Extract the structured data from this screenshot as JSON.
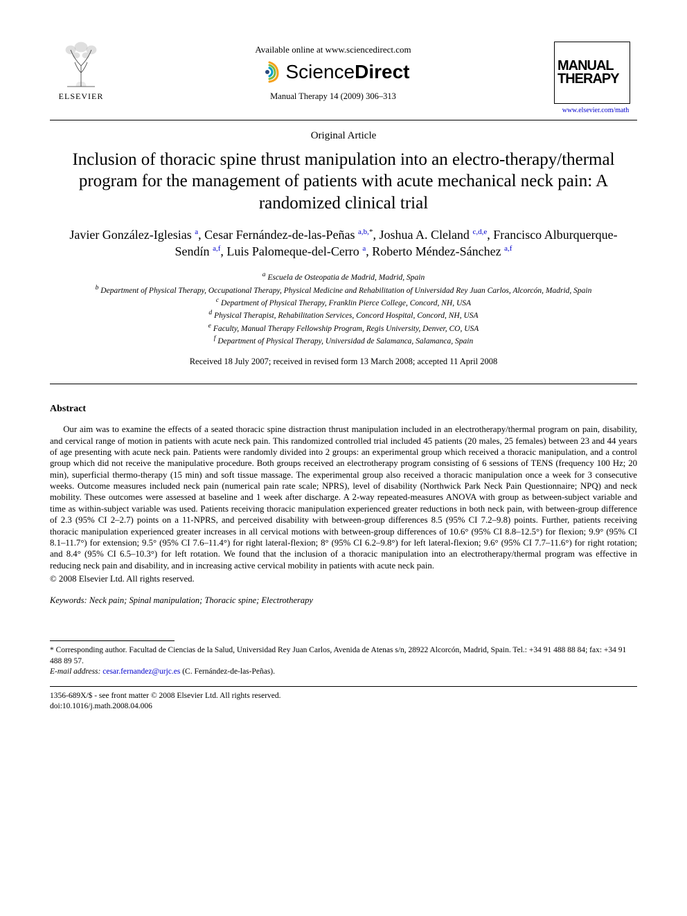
{
  "header": {
    "elsevier_label": "ELSEVIER",
    "available_text": "Available online at www.sciencedirect.com",
    "sciencedirect_prefix": "Science",
    "sciencedirect_suffix": "Direct",
    "citation": "Manual Therapy 14 (2009) 306–313",
    "journal_logo_line1": "Manual",
    "journal_logo_line2": "Therapy",
    "journal_url": "www.elsevier.com/math"
  },
  "article": {
    "type": "Original Article",
    "title": "Inclusion of thoracic spine thrust manipulation into an electro-therapy/thermal program for the management of patients with acute mechanical neck pain: A randomized clinical trial"
  },
  "authors_html": "Javier González-Iglesias <sup class='sup-link'>a</sup>, Cesar Fernández-de-las-Peñas <sup class='sup-link'>a,b,</sup><sup>*</sup>, Joshua A. Cleland <sup class='sup-link'>c,d,e</sup>, Francisco Alburquerque-Sendín <sup class='sup-link'>a,f</sup>, Luis Palomeque-del-Cerro <sup class='sup-link'>a</sup>, Roberto Méndez-Sánchez <sup class='sup-link'>a,f</sup>",
  "affiliations": {
    "a": "Escuela de Osteopatia de Madrid, Madrid, Spain",
    "b": "Department of Physical Therapy, Occupational Therapy, Physical Medicine and Rehabilitation of Universidad Rey Juan Carlos, Alcorcón, Madrid, Spain",
    "c": "Department of Physical Therapy, Franklin Pierce College, Concord, NH, USA",
    "d": "Physical Therapist, Rehabilitation Services, Concord Hospital, Concord, NH, USA",
    "e": "Faculty, Manual Therapy Fellowship Program, Regis University, Denver, CO, USA",
    "f": "Department of Physical Therapy, Universidad de Salamanca, Salamanca, Spain"
  },
  "dates": "Received 18 July 2007; received in revised form 13 March 2008; accepted 11 April 2008",
  "abstract": {
    "heading": "Abstract",
    "body": "Our aim was to examine the effects of a seated thoracic spine distraction thrust manipulation included in an electrotherapy/thermal program on pain, disability, and cervical range of motion in patients with acute neck pain. This randomized controlled trial included 45 patients (20 males, 25 females) between 23 and 44 years of age presenting with acute neck pain. Patients were randomly divided into 2 groups: an experimental group which received a thoracic manipulation, and a control group which did not receive the manipulative procedure. Both groups received an electrotherapy program consisting of 6 sessions of TENS (frequency 100 Hz; 20 min), superficial thermo-therapy (15 min) and soft tissue massage. The experimental group also received a thoracic manipulation once a week for 3 consecutive weeks. Outcome measures included neck pain (numerical pain rate scale; NPRS), level of disability (Northwick Park Neck Pain Questionnaire; NPQ) and neck mobility. These outcomes were assessed at baseline and 1 week after discharge. A 2-way repeated-measures ANOVA with group as between-subject variable and time as within-subject variable was used. Patients receiving thoracic manipulation experienced greater reductions in both neck pain, with between-group difference of 2.3 (95% CI 2–2.7) points on a 11-NPRS, and perceived disability with between-group differences 8.5 (95% CI 7.2–9.8) points. Further, patients receiving thoracic manipulation experienced greater increases in all cervical motions with between-group differences of 10.6° (95% CI 8.8–12.5°) for flexion; 9.9° (95% CI 8.1–11.7°) for extension; 9.5° (95% CI 7.6–11.4°) for right lateral-flexion; 8° (95% CI 6.2–9.8°) for left lateral-flexion; 9.6° (95% CI 7.7–11.6°) for right rotation; and 8.4° (95% CI 6.5–10.3°) for left rotation. We found that the inclusion of a thoracic manipulation into an electrotherapy/thermal program was effective in reducing neck pain and disability, and in increasing active cervical mobility in patients with acute neck pain.",
    "copyright": "© 2008 Elsevier Ltd. All rights reserved."
  },
  "keywords": {
    "label": "Keywords:",
    "text": "Neck pain; Spinal manipulation; Thoracic spine; Electrotherapy"
  },
  "footnote": {
    "corresponding": "* Corresponding author. Facultad de Ciencias de la Salud, Universidad Rey Juan Carlos, Avenida de Atenas s/n, 28922 Alcorcón, Madrid, Spain. Tel.: +34 91 488 88 84; fax: +34 91 488 89 57.",
    "email_label": "E-mail address:",
    "email": "cesar.fernandez@urjc.es",
    "email_person": "(C. Fernández-de-las-Peñas)."
  },
  "footer": {
    "line1": "1356-689X/$ - see front matter © 2008 Elsevier Ltd. All rights reserved.",
    "line2": "doi:10.1016/j.math.2008.04.006"
  },
  "colors": {
    "text": "#000000",
    "link": "#0000cc",
    "background": "#ffffff",
    "swirl1": "#f5a11a",
    "swirl2": "#7fba42",
    "swirl3": "#00a0c6"
  },
  "typography": {
    "title_fontsize": 25,
    "authors_fontsize": 18,
    "body_fontsize": 12.8,
    "affil_fontsize": 11.5,
    "font_family": "Times New Roman"
  }
}
